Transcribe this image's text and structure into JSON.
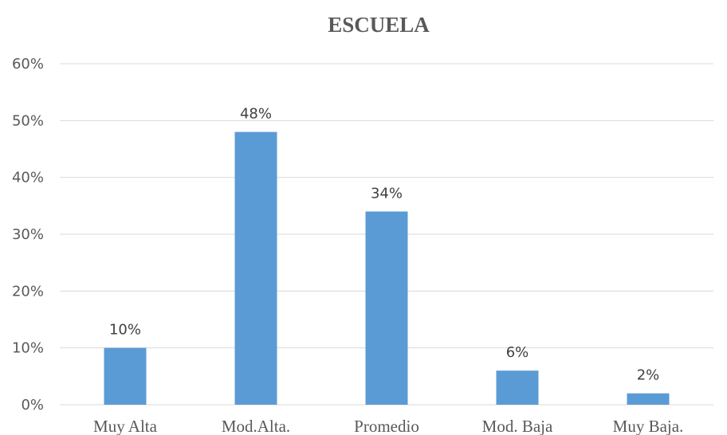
{
  "chart_data": {
    "type": "bar",
    "title": "ESCUELA",
    "categories": [
      "Muy Alta",
      "Mod.Alta.",
      "Promedio",
      "Mod. Baja",
      "Muy Baja."
    ],
    "values": [
      10,
      48,
      34,
      6,
      2
    ],
    "data_labels": [
      "10%",
      "48%",
      "34%",
      "6%",
      "2%"
    ],
    "y_ticks": [
      "0%",
      "10%",
      "20%",
      "30%",
      "40%",
      "50%",
      "60%"
    ],
    "ylim": [
      0,
      60
    ],
    "grid": true,
    "legend": "none",
    "bar_color": "#5b9bd5"
  }
}
